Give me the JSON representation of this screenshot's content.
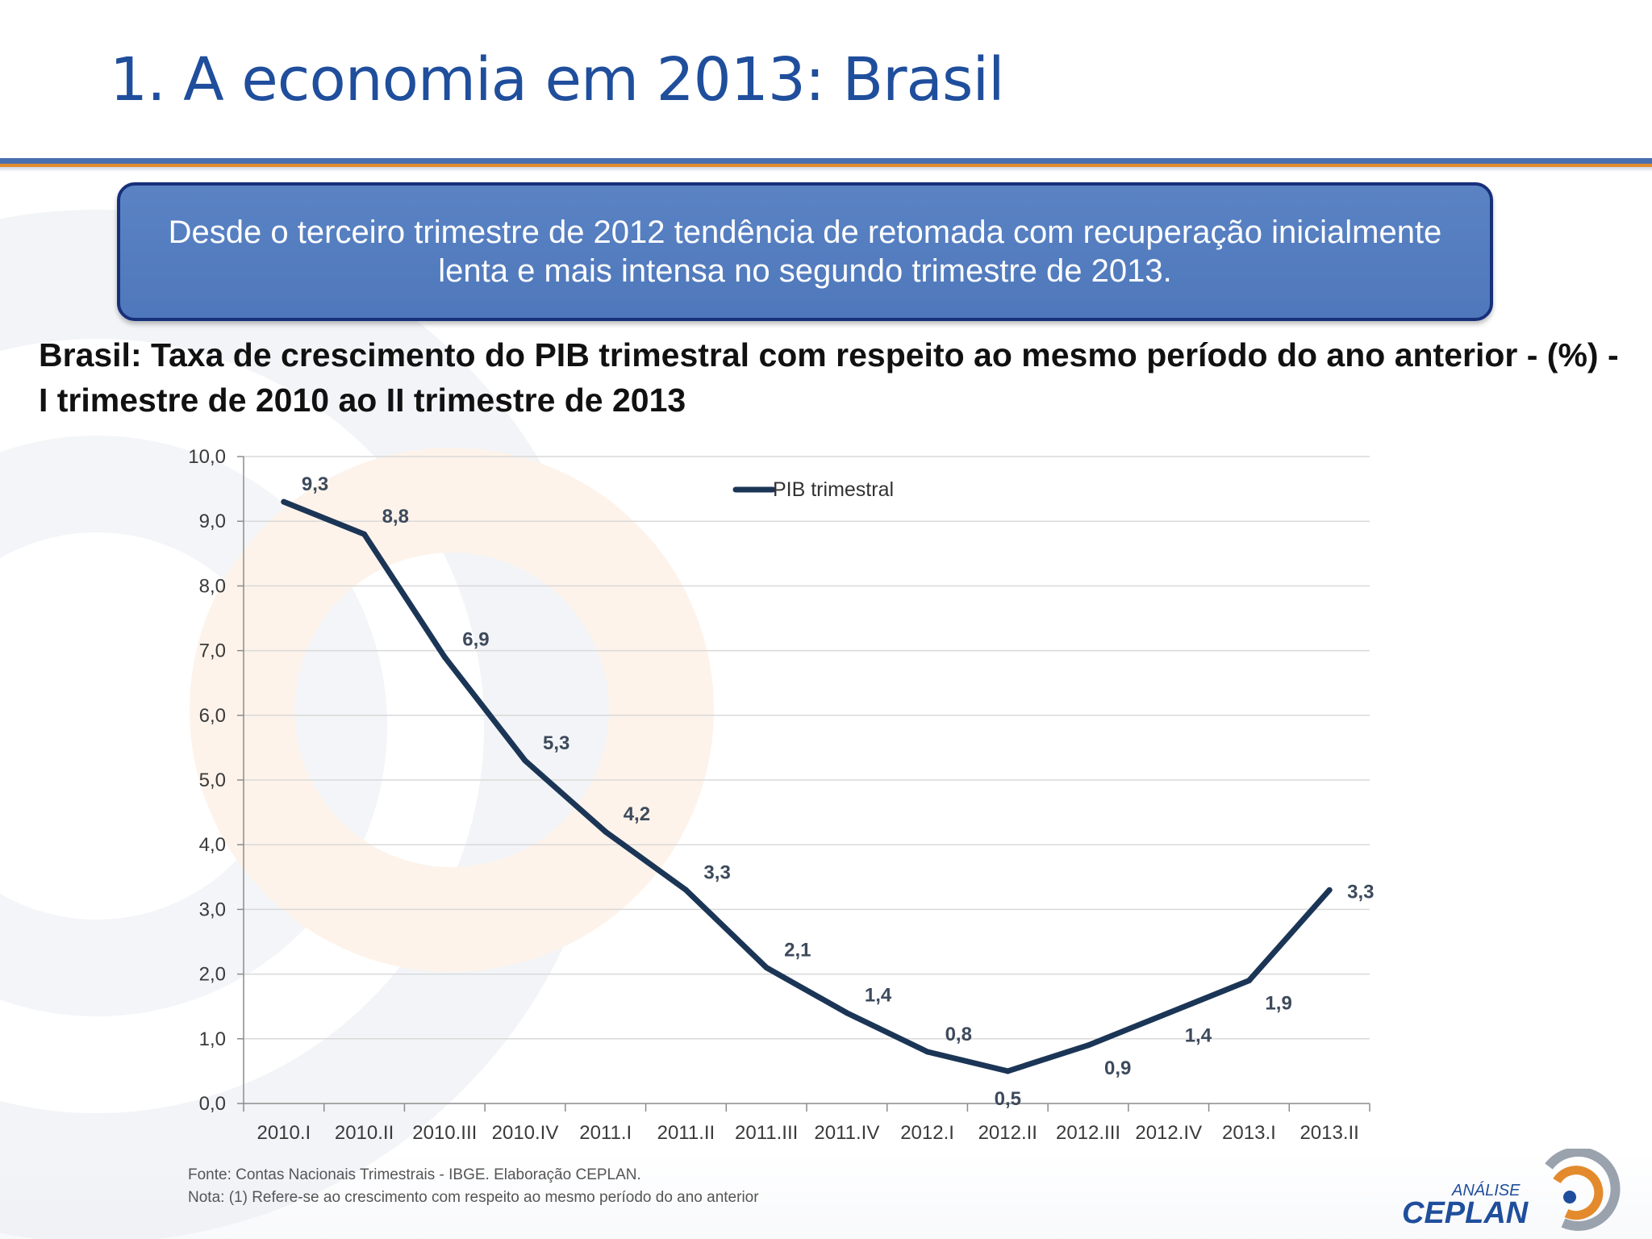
{
  "slide": {
    "title": "1. A economia em 2013: Brasil",
    "callout": "Desde o terceiro trimestre de  2012 tendência de retomada  com recuperação inicialmente  lenta e mais intensa no segundo  trimestre de 2013.",
    "chart_heading": "Brasil: Taxa de crescimento do PIB trimestral com respeito ao mesmo período do ano anterior -  (%) - I trimestre de 2010 ao II trimestre de 2013",
    "source": "Fonte: Contas Nacionais Trimestrais - IBGE. Elaboração CEPLAN.",
    "note": "Nota: (1) Refere-se ao crescimento com respeito ao mesmo período do ano anterior",
    "logo": {
      "top": "ANÁLISE",
      "brand": "CEPLAN"
    }
  },
  "colors": {
    "title": "#1f4e9c",
    "callout_fill": "#4f78bb",
    "callout_border": "#17307a",
    "series_line": "#1b3556",
    "rule_blue": "#4a6fb0",
    "rule_orange": "#e38b2c"
  },
  "chart_data": {
    "type": "line",
    "categories": [
      "2010.I",
      "2010.II",
      "2010.III",
      "2010.IV",
      "2011.I",
      "2011.II",
      "2011.III",
      "2011.IV",
      "2012.I",
      "2012.II",
      "2012.III",
      "2012.IV",
      "2013.I",
      "2013.II"
    ],
    "series": [
      {
        "name": "PIB trimestral",
        "values": [
          9.3,
          8.8,
          6.9,
          5.3,
          4.2,
          3.3,
          2.1,
          1.4,
          0.8,
          0.5,
          0.9,
          1.4,
          1.9,
          3.3
        ],
        "data_labels": [
          "9,3",
          "8,8",
          "6,9",
          "5,3",
          "4,2",
          "3,3",
          "2,1",
          "1,4",
          "0,8",
          "0,5",
          "0,9",
          "1,4",
          "1,9",
          "3,3"
        ]
      }
    ],
    "y_ticks": [
      "0,0",
      "1,0",
      "2,0",
      "3,0",
      "4,0",
      "5,0",
      "6,0",
      "7,0",
      "8,0",
      "9,0",
      "10,0"
    ],
    "ylim": [
      0,
      10
    ],
    "grid": true,
    "legend": "top-center"
  }
}
